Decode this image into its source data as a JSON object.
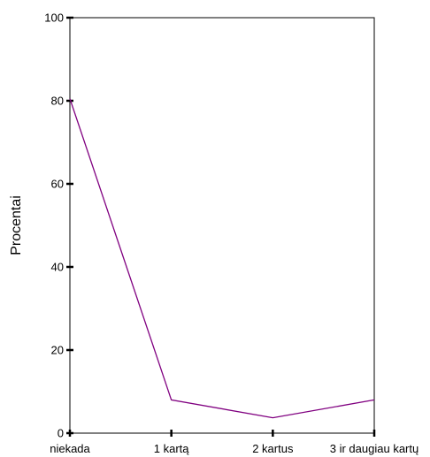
{
  "chart_data": {
    "type": "line",
    "categories": [
      "niekada",
      "1 kartą",
      "2 kartus",
      "3 ir daugiau kartų"
    ],
    "series": [
      {
        "values": [
          80.5,
          8.0,
          3.7,
          8.0
        ]
      }
    ],
    "xlabel": "",
    "ylabel": "Procentai",
    "ylim": [
      0,
      100
    ],
    "yticks": [
      0,
      20,
      40,
      60,
      80,
      100
    ],
    "grid": false,
    "line_color": "#800080",
    "axis_color": "#000000",
    "background": "#ffffff"
  }
}
